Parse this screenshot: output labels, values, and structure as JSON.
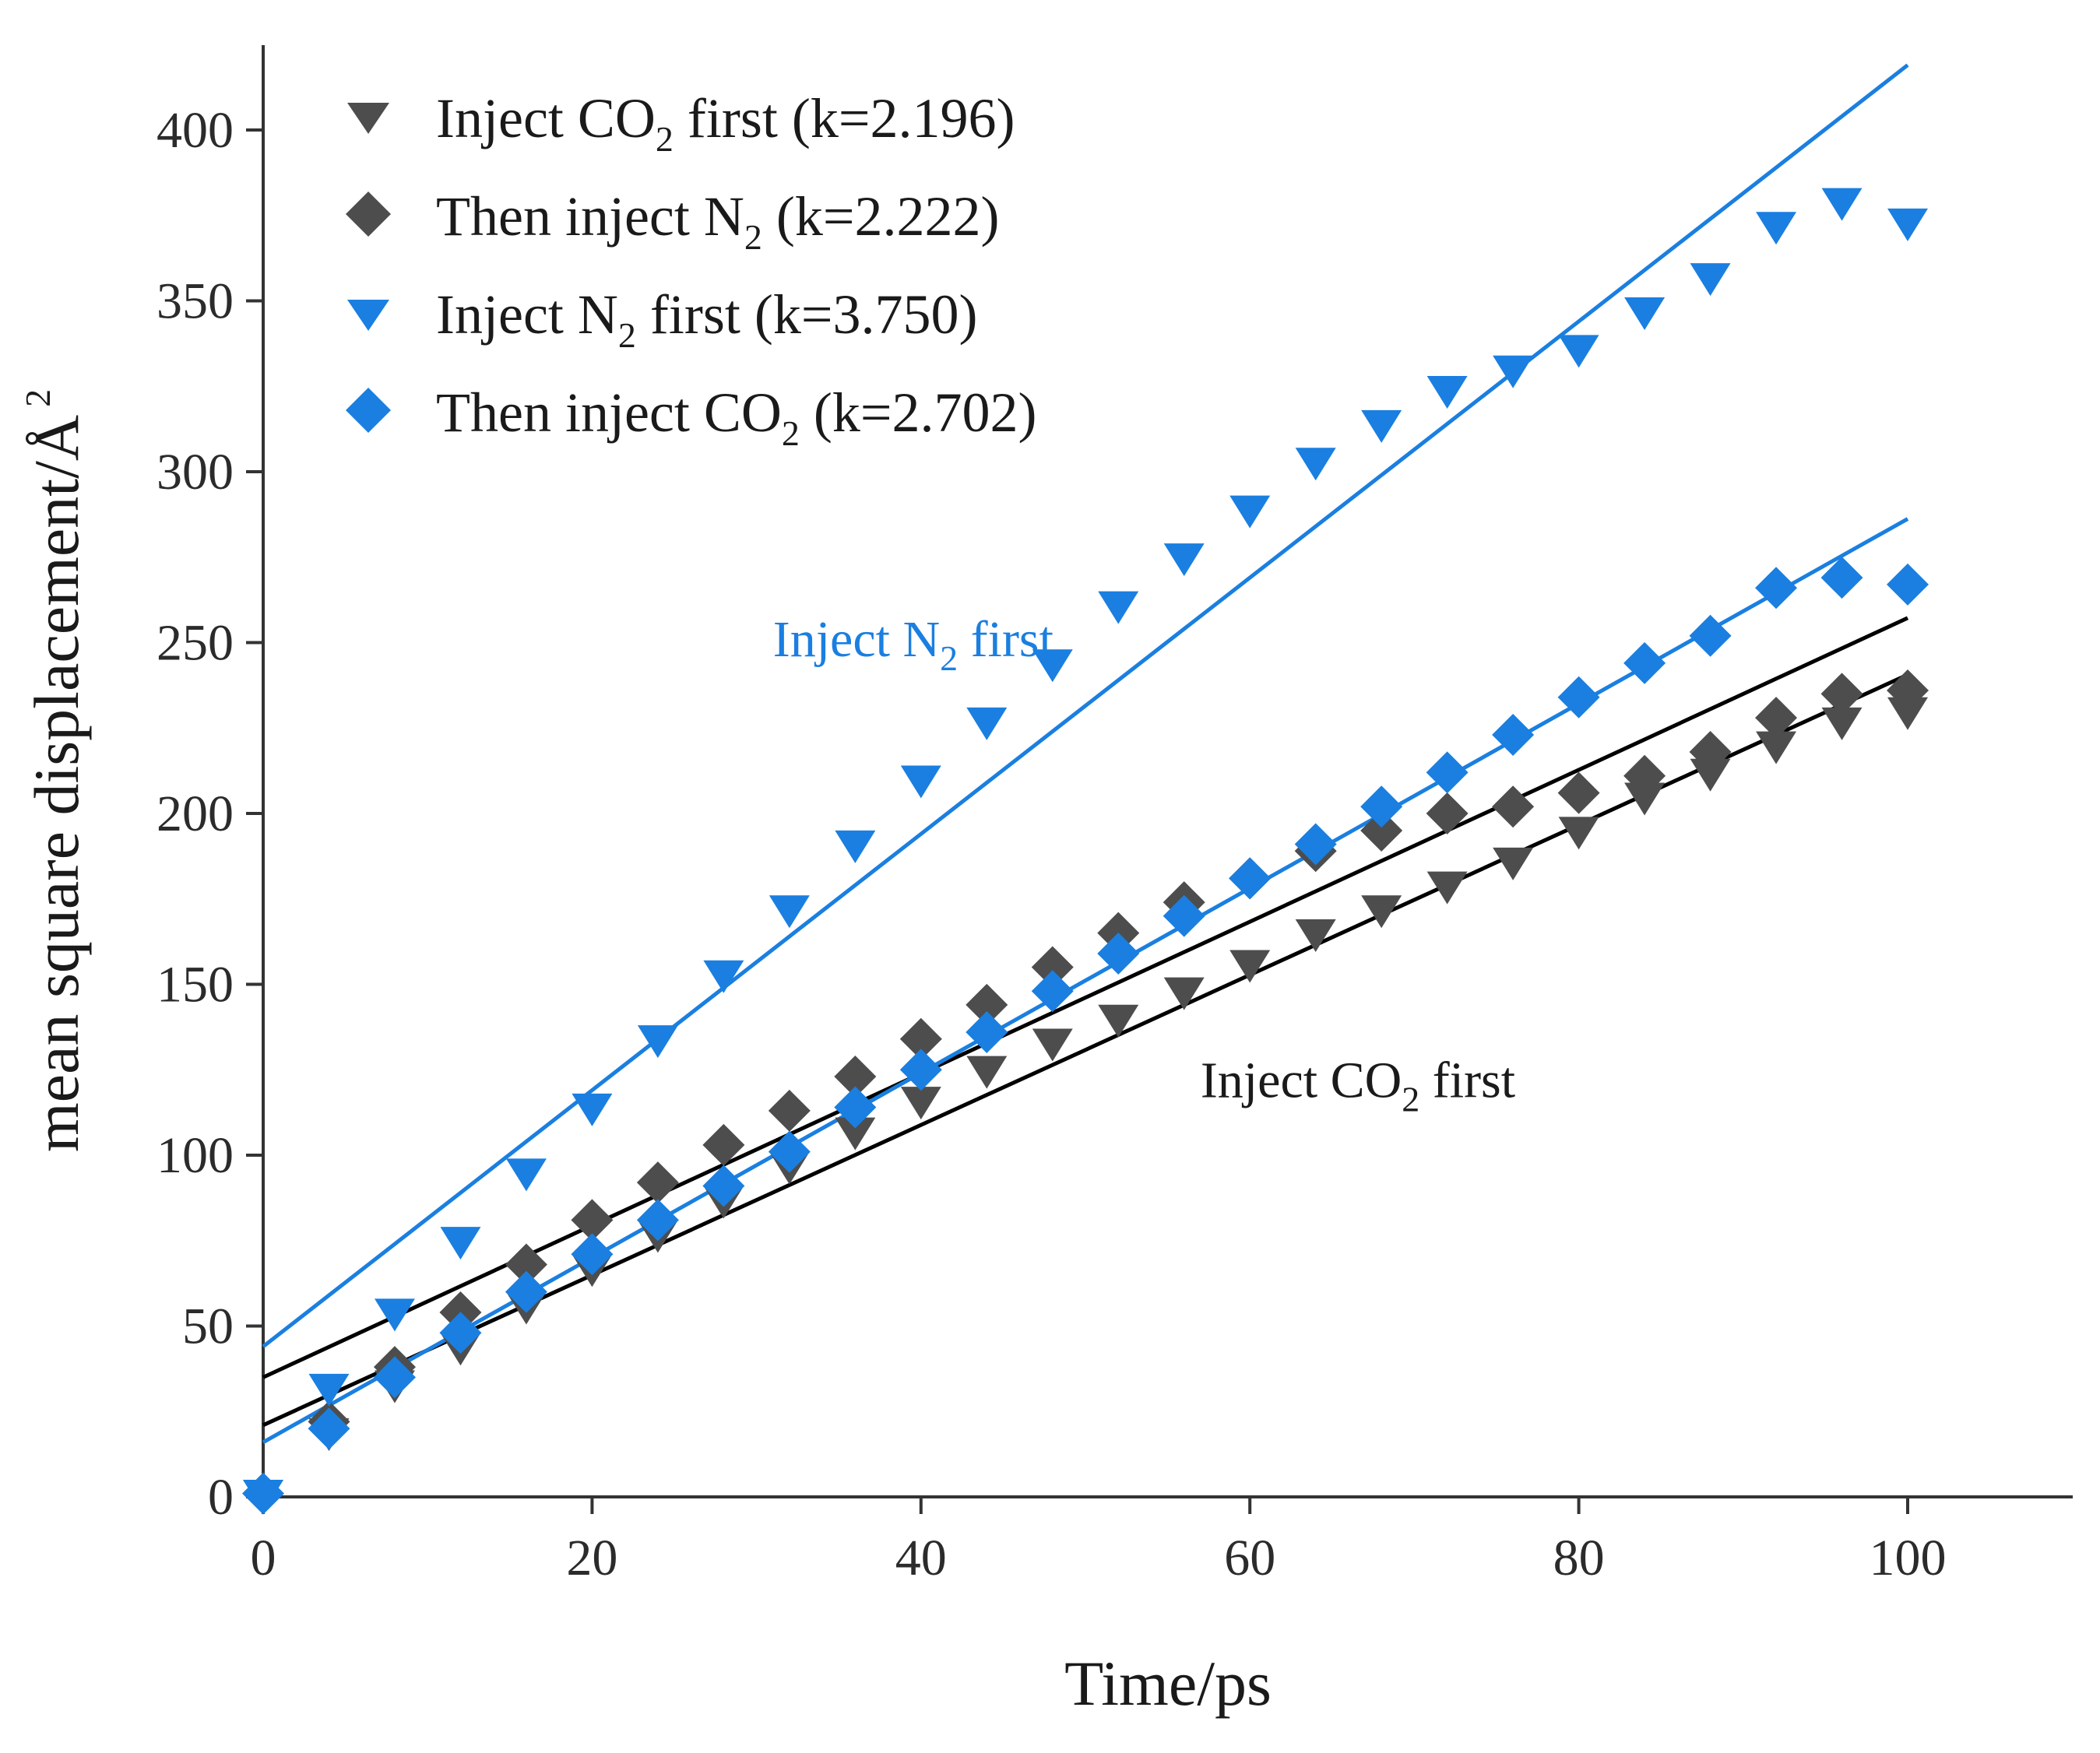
{
  "chart_data": {
    "type": "scatter",
    "title": "",
    "xlabel": "Time/ps",
    "ylabel": "mean square displacement/Å",
    "ylabel_sup": "2",
    "xlim": [
      0,
      110
    ],
    "ylim": [
      0,
      420
    ],
    "xticks": [
      0,
      20,
      40,
      60,
      80,
      100
    ],
    "yticks": [
      0,
      50,
      100,
      150,
      200,
      250,
      300,
      350,
      400
    ],
    "grid": false,
    "legend_position": "top-left",
    "x": [
      4,
      8,
      12,
      16,
      20,
      24,
      28,
      32,
      36,
      40,
      44,
      48,
      52,
      56,
      60,
      64,
      68,
      72,
      76,
      80,
      84,
      88,
      92,
      96,
      100
    ],
    "series": [
      {
        "key": "co2_first",
        "name": "Inject CO",
        "sub": "2",
        "suffix": " first (k=2.196)",
        "marker": "triangle-down",
        "color": "#4d4d4d",
        "origin": {
          "x": 0,
          "y": 0
        },
        "values": [
          18,
          32,
          43,
          55,
          66,
          76,
          86,
          96,
          106,
          115,
          124,
          132,
          139,
          147,
          155,
          164,
          171,
          178,
          185,
          194,
          204,
          211,
          219,
          226,
          229
        ],
        "fit": {
          "intercept": 21,
          "slope": 2.196,
          "color": "#000000"
        }
      },
      {
        "key": "n2_then",
        "name": "Then inject N",
        "sub": "2",
        "suffix": " (k=2.222)",
        "marker": "diamond",
        "color": "#4d4d4d",
        "origin": null,
        "values": [
          22,
          38,
          54,
          68,
          81,
          92,
          103,
          113,
          123,
          134,
          144,
          155,
          165,
          174,
          181,
          189,
          195,
          200,
          202,
          206,
          211,
          218,
          228,
          235,
          236
        ],
        "fit": {
          "intercept": 35,
          "slope": 2.222,
          "color": "#000000"
        }
      },
      {
        "key": "n2_first",
        "name": "Inject N",
        "sub": "2",
        "suffix": " first (k=3.750)",
        "marker": "triangle-down",
        "color": "#1a7fe0",
        "origin": {
          "x": 0,
          "y": 0
        },
        "values": [
          31,
          53,
          74,
          94,
          113,
          133,
          152,
          171,
          190,
          209,
          226,
          243,
          260,
          274,
          288,
          302,
          313,
          323,
          329,
          335,
          346,
          356,
          371,
          378,
          372
        ],
        "fit": {
          "intercept": 44,
          "slope": 3.75,
          "color": "#1a7fe0"
        }
      },
      {
        "key": "co2_then",
        "name": "Then inject CO",
        "sub": "2",
        "suffix": " (k=2.702)",
        "marker": "diamond",
        "color": "#1a7fe0",
        "origin": {
          "x": 0,
          "y": 1
        },
        "values": [
          20,
          35,
          48,
          60,
          71,
          81,
          91,
          101,
          114,
          125,
          136,
          148,
          159,
          170,
          181,
          191,
          202,
          212,
          223,
          234,
          244,
          252,
          266,
          269,
          267
        ],
        "fit": {
          "intercept": 16,
          "slope": 2.702,
          "color": "#1a7fe0"
        }
      }
    ],
    "annotations": [
      {
        "text": "Inject N",
        "sub": "2",
        "suffix": " first",
        "x": 31,
        "y": 246,
        "color": "#1a7fe0"
      },
      {
        "text": "Inject CO",
        "sub": "2",
        "suffix": " first",
        "x": 57,
        "y": 117,
        "color": "#1a1a1a"
      }
    ]
  }
}
